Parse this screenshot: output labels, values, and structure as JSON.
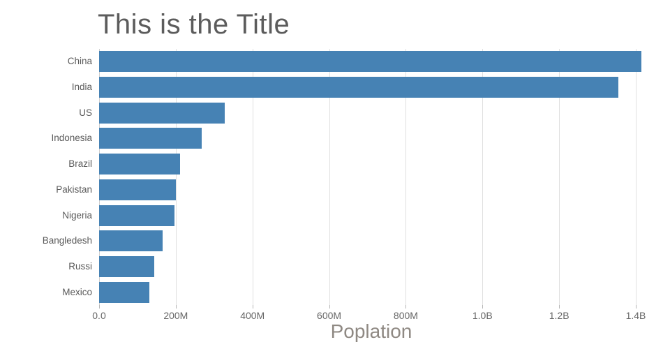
{
  "chart_data": {
    "type": "bar",
    "orientation": "horizontal",
    "title": "This is the Title",
    "xlabel": "Poplation",
    "ylabel": "",
    "legend": "none",
    "grid": "vertical-major-only",
    "categories": [
      "China",
      "India",
      "US",
      "Indonesia",
      "Brazil",
      "Pakistan",
      "Nigeria",
      "Bangledesh",
      "Russi",
      "Mexico"
    ],
    "series": [
      {
        "name": "Poplation",
        "values_millions": [
          1415,
          1354,
          327,
          267,
          211,
          201,
          196,
          166,
          144,
          131
        ]
      }
    ],
    "xlim_millions": [
      0,
      1420
    ],
    "x_ticks": [
      {
        "value": 0,
        "label": "0.0"
      },
      {
        "value": 200,
        "label": "200M"
      },
      {
        "value": 400,
        "label": "400M"
      },
      {
        "value": 600,
        "label": "600M"
      },
      {
        "value": 800,
        "label": "800M"
      },
      {
        "value": 1000,
        "label": "1.0B"
      },
      {
        "value": 1200,
        "label": "1.2B"
      },
      {
        "value": 1400,
        "label": "1.4B"
      }
    ],
    "colors": {
      "bar": "#4682B4",
      "title": "#5c5c5c",
      "category_label": "#5a5a5a",
      "tick_label": "#666666",
      "axis_label": "#8f8983",
      "gridline": "#e0e0e0",
      "axis_line": "#cfcfcf",
      "tick_mark": "#b5b5b5",
      "background": "#ffffff"
    }
  }
}
